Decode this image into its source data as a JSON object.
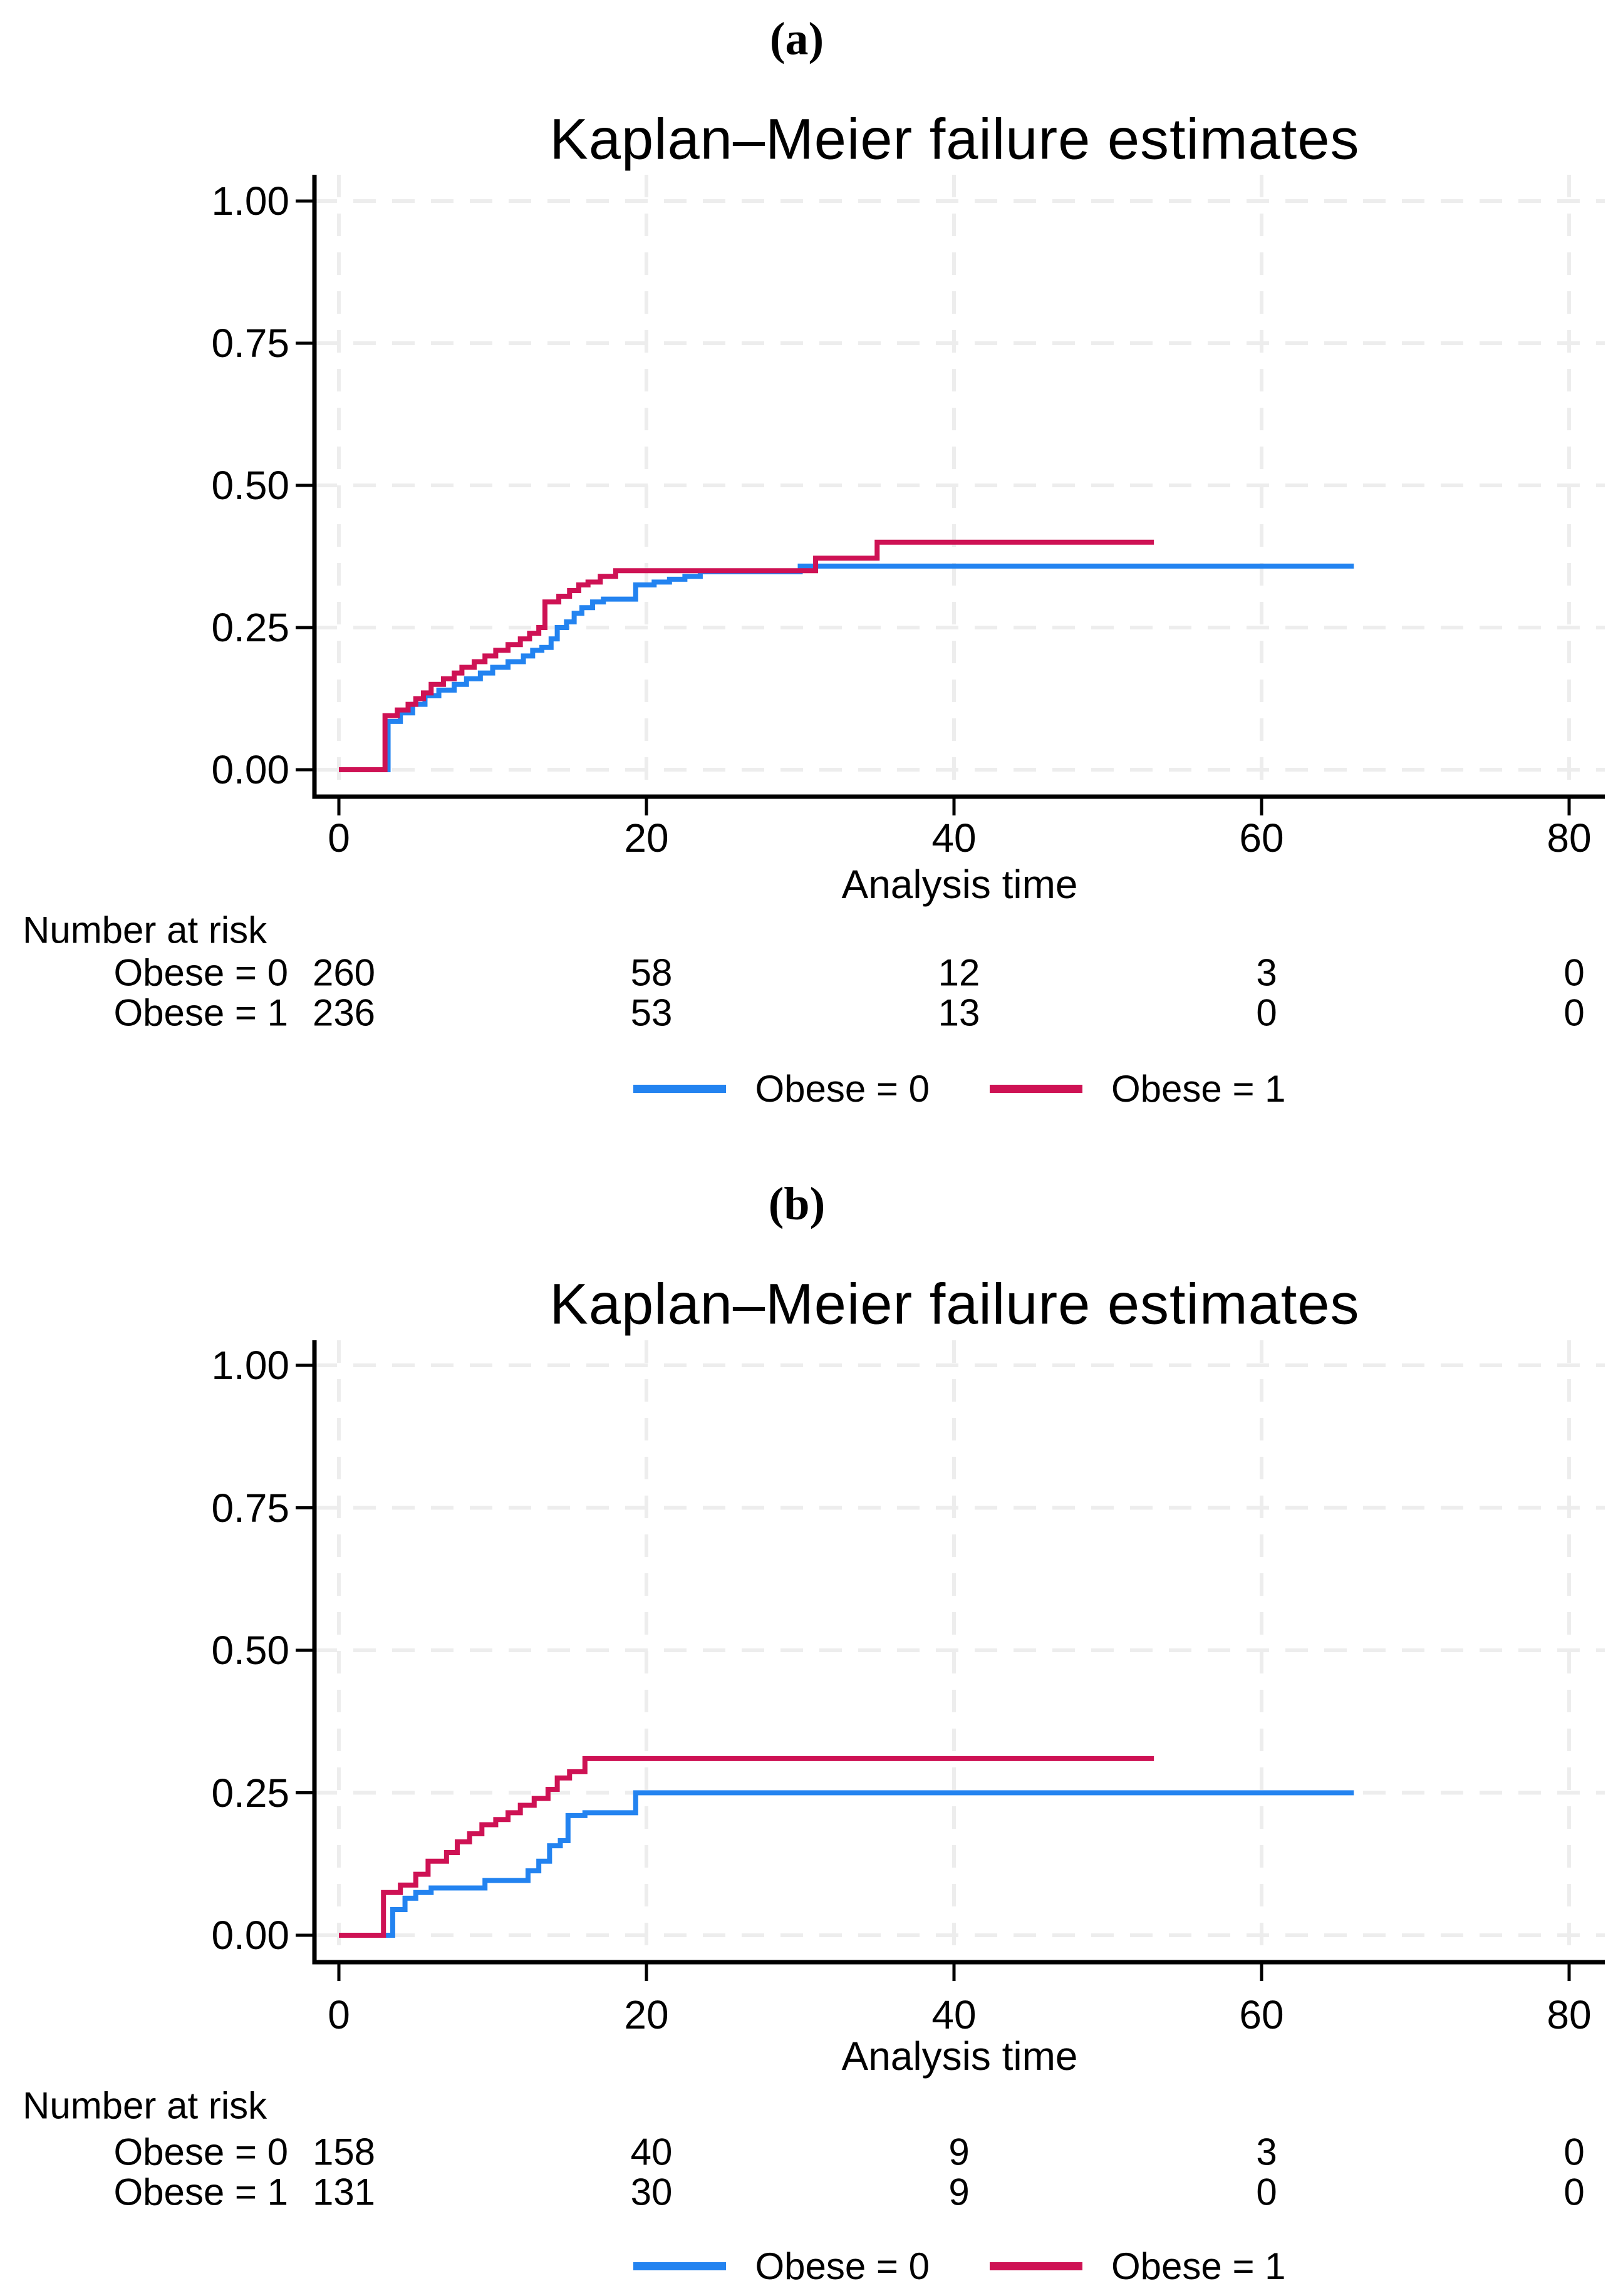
{
  "colors": {
    "obese0_blue": "#2383F0",
    "obese1_red": "#CE1254",
    "gridline": "#EDEDED",
    "axis": "#000000",
    "background": "#FFFFFF"
  },
  "chart_data": [
    {
      "type": "line",
      "subtype": "kaplan-meier-step",
      "panel_label": "(a)",
      "title": "Kaplan–Meier failure estimates",
      "xlabel": "Analysis time",
      "ylabel": "",
      "xlim": [
        0,
        80
      ],
      "ylim": [
        0,
        1
      ],
      "grid": true,
      "legend_position": "bottom-center",
      "x_ticks": [
        "0",
        "20",
        "40",
        "60",
        "80"
      ],
      "y_ticks": [
        "0.00",
        "0.25",
        "0.50",
        "0.75",
        "1.00"
      ],
      "series": [
        {
          "name": "Obese = 0",
          "color_key": "obese0_blue",
          "points": [
            [
              0,
              0
            ],
            [
              3.2,
              0.085
            ],
            [
              4,
              0.1
            ],
            [
              4.8,
              0.115
            ],
            [
              5.6,
              0.13
            ],
            [
              6.5,
              0.14
            ],
            [
              7.5,
              0.15
            ],
            [
              8.3,
              0.16
            ],
            [
              9.2,
              0.17
            ],
            [
              10,
              0.18
            ],
            [
              11,
              0.19
            ],
            [
              12,
              0.2
            ],
            [
              12.6,
              0.21
            ],
            [
              13.2,
              0.215
            ],
            [
              13.8,
              0.23
            ],
            [
              14.2,
              0.25
            ],
            [
              14.8,
              0.26
            ],
            [
              15.3,
              0.275
            ],
            [
              15.8,
              0.285
            ],
            [
              16.5,
              0.295
            ],
            [
              17.2,
              0.3
            ],
            [
              19.3,
              0.325
            ],
            [
              20.5,
              0.33
            ],
            [
              21.5,
              0.335
            ],
            [
              22.5,
              0.34
            ],
            [
              23.5,
              0.348
            ],
            [
              30,
              0.358
            ],
            [
              66,
              0.358
            ]
          ]
        },
        {
          "name": "Obese = 1",
          "color_key": "obese1_red",
          "points": [
            [
              0,
              0
            ],
            [
              3,
              0.095
            ],
            [
              3.8,
              0.105
            ],
            [
              4.5,
              0.115
            ],
            [
              5,
              0.125
            ],
            [
              5.5,
              0.135
            ],
            [
              6,
              0.15
            ],
            [
              6.8,
              0.16
            ],
            [
              7.5,
              0.17
            ],
            [
              8,
              0.18
            ],
            [
              8.8,
              0.19
            ],
            [
              9.5,
              0.2
            ],
            [
              10.2,
              0.21
            ],
            [
              11,
              0.22
            ],
            [
              11.8,
              0.23
            ],
            [
              12.4,
              0.24
            ],
            [
              13,
              0.25
            ],
            [
              13.4,
              0.295
            ],
            [
              14.3,
              0.305
            ],
            [
              15,
              0.315
            ],
            [
              15.6,
              0.325
            ],
            [
              16.2,
              0.33
            ],
            [
              17,
              0.34
            ],
            [
              18,
              0.35
            ],
            [
              31,
              0.372
            ],
            [
              35,
              0.4
            ],
            [
              53,
              0.4
            ]
          ]
        }
      ],
      "number_at_risk": {
        "header": "Number at risk",
        "time_points": [
          0,
          20,
          40,
          60,
          80
        ],
        "rows": [
          {
            "label": "Obese = 0",
            "values": [
              "260",
              "58",
              "12",
              "3",
              "0"
            ]
          },
          {
            "label": "Obese = 1",
            "values": [
              "236",
              "53",
              "13",
              "0",
              "0"
            ]
          }
        ]
      }
    },
    {
      "type": "line",
      "subtype": "kaplan-meier-step",
      "panel_label": "(b)",
      "title": "Kaplan–Meier failure estimates",
      "xlabel": "Analysis time",
      "ylabel": "",
      "xlim": [
        0,
        80
      ],
      "ylim": [
        0,
        1
      ],
      "grid": true,
      "legend_position": "bottom-center",
      "x_ticks": [
        "0",
        "20",
        "40",
        "60",
        "80"
      ],
      "y_ticks": [
        "0.00",
        "0.25",
        "0.50",
        "0.75",
        "1.00"
      ],
      "series": [
        {
          "name": "Obese = 0",
          "color_key": "obese0_blue",
          "points": [
            [
              0,
              0
            ],
            [
              3.5,
              0.045
            ],
            [
              4.3,
              0.065
            ],
            [
              5,
              0.075
            ],
            [
              6,
              0.083
            ],
            [
              9.5,
              0.096
            ],
            [
              12.3,
              0.113
            ],
            [
              13,
              0.13
            ],
            [
              13.7,
              0.157
            ],
            [
              14.4,
              0.166
            ],
            [
              14.9,
              0.21
            ],
            [
              16,
              0.215
            ],
            [
              19.3,
              0.25
            ],
            [
              66,
              0.25
            ]
          ]
        },
        {
          "name": "Obese = 1",
          "color_key": "obese1_red",
          "points": [
            [
              0,
              0
            ],
            [
              2.9,
              0.075
            ],
            [
              4,
              0.088
            ],
            [
              5,
              0.107
            ],
            [
              5.8,
              0.13
            ],
            [
              7,
              0.145
            ],
            [
              7.7,
              0.164
            ],
            [
              8.5,
              0.178
            ],
            [
              9.3,
              0.194
            ],
            [
              10.2,
              0.203
            ],
            [
              11,
              0.215
            ],
            [
              11.8,
              0.228
            ],
            [
              12.7,
              0.24
            ],
            [
              13.6,
              0.256
            ],
            [
              14.2,
              0.276
            ],
            [
              15,
              0.287
            ],
            [
              16,
              0.31
            ],
            [
              53,
              0.31
            ]
          ]
        }
      ],
      "number_at_risk": {
        "header": "Number at risk",
        "time_points": [
          0,
          20,
          40,
          60,
          80
        ],
        "rows": [
          {
            "label": "Obese = 0",
            "values": [
              "158",
              "40",
              "9",
              "3",
              "0"
            ]
          },
          {
            "label": "Obese = 1",
            "values": [
              "131",
              "30",
              "9",
              "0",
              "0"
            ]
          }
        ]
      }
    }
  ]
}
